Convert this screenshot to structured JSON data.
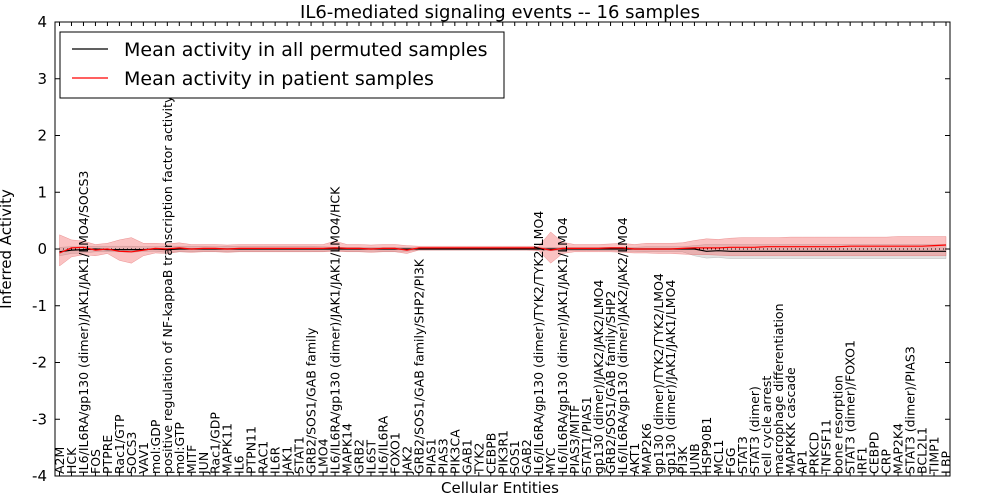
{
  "chart_data": {
    "type": "line",
    "title": "IL6-mediated signaling events -- 16 samples",
    "xlabel": "Cellular Entities",
    "ylabel": "Inferred Activity",
    "ylim": [
      -4,
      4
    ],
    "yticks": [
      -4,
      -3,
      -2,
      -1,
      0,
      1,
      2,
      3,
      4
    ],
    "grid": false,
    "legend_position": "top-left",
    "categories": [
      "A2M",
      "HCK",
      "IL6/IL6RA/gp130 (dimer)/JAK1/JAK1/LMO4/SOCS3",
      "FOS",
      "PTPRE",
      "Rac1/GTP",
      "SOCS3",
      "VAV1",
      "mol:GDP",
      "positive regulation of NF-kappaB transcription factor activity",
      "mol:GTP",
      "MITF",
      "JUN",
      "Rac1/GDP",
      "MAPK11",
      "IL6",
      "PTPN11",
      "RAC1",
      "IL6R",
      "JAK1",
      "STAT1",
      "GRB2/SOS1/GAB family",
      "LMO4",
      "IL6/IL6RA/gp130 (dimer)/JAK1/JAK1/LMO4/HCK",
      "MAPK14",
      "GRB2",
      "IL6ST",
      "IL6/IL6RA",
      "FOXO1",
      "JAK2",
      "GRB2/SOS1/GAB family/SHP2/PI3K",
      "PIAS1",
      "PIAS3",
      "PIK3CA",
      "GAB1",
      "TYK2",
      "CEBPB",
      "PIK3R1",
      "SOS1",
      "GAB2",
      "IL6/IL6RA/gp130 (dimer)/TYK2/TYK2/LMO4",
      "MYC",
      "IL6/IL6RA/gp130 (dimer)/JAK1/JAK1/LMO4",
      "PIAS3/MITF",
      "STAT1/PIAS1",
      "gp130 (dimer)/JAK2/JAK2/LMO4",
      "GRB2/SOS1/GAB family/SHP2",
      "IL6/IL6RA/gp130 (dimer)/JAK2/JAK2/LMO4",
      "AKT1",
      "MAP2K6",
      "gp130 (dimer)/TYK2/TYK2/LMO4",
      "gp130 (dimer)/JAK1/JAK1/LMO4",
      "PI3K",
      "JUNB",
      "HSP90B1",
      "MCL1",
      "FGG",
      "STAT3",
      "STAT3 (dimer)",
      "cell cycle arrest",
      "macrophage differentiation",
      "MAPKKK cascade",
      "AP1",
      "PRKCD",
      "TNFSF11",
      "bone resorption",
      "STAT3 (dimer)/FOXO1",
      "IRF1",
      "CEBPD",
      "CRP",
      "MAP2K4",
      "STAT3 (dimer)/PIAS3",
      "BCL2L1",
      "TIMP1",
      "LBP"
    ],
    "series": [
      {
        "name": "Mean activity in all permuted samples",
        "color": "#000000",
        "values": [
          -0.05,
          -0.02,
          -0.01,
          0,
          -0.01,
          -0.01,
          -0.01,
          -0.01,
          0,
          -0.01,
          0,
          0,
          0,
          0,
          0,
          0,
          0,
          0,
          0,
          0,
          0,
          0,
          0,
          0,
          0,
          0,
          0,
          0,
          0,
          0,
          0,
          0,
          0,
          0,
          0,
          0,
          0,
          0,
          0,
          0,
          0,
          0,
          0,
          0,
          0,
          0,
          0,
          0,
          0,
          0,
          0,
          0,
          0,
          0,
          -0.04,
          -0.03,
          -0.04,
          -0.04,
          -0.04,
          -0.04,
          -0.04,
          -0.04,
          -0.04,
          -0.04,
          -0.04,
          -0.04,
          -0.04,
          -0.04,
          -0.04,
          -0.04,
          -0.04,
          -0.04,
          -0.04,
          -0.04,
          -0.04
        ],
        "band_low": [
          -0.12,
          -0.08,
          -0.07,
          -0.05,
          -0.05,
          -0.05,
          -0.06,
          -0.04,
          -0.04,
          -0.06,
          -0.05,
          -0.05,
          -0.04,
          -0.04,
          -0.05,
          -0.05,
          -0.05,
          -0.05,
          -0.05,
          -0.05,
          -0.05,
          -0.05,
          -0.04,
          -0.03,
          -0.04,
          -0.04,
          -0.04,
          -0.04,
          -0.04,
          -0.04,
          -0.02,
          -0.02,
          -0.02,
          -0.02,
          -0.02,
          -0.02,
          -0.02,
          -0.02,
          -0.02,
          -0.02,
          -0.02,
          -0.03,
          -0.03,
          -0.03,
          -0.03,
          -0.03,
          -0.03,
          -0.04,
          -0.04,
          -0.05,
          -0.05,
          -0.05,
          -0.05,
          -0.12,
          -0.16,
          -0.15,
          -0.17,
          -0.17,
          -0.17,
          -0.17,
          -0.17,
          -0.17,
          -0.17,
          -0.17,
          -0.17,
          -0.17,
          -0.17,
          -0.17,
          -0.17,
          -0.17,
          -0.17,
          -0.17,
          -0.17,
          -0.17,
          -0.17
        ],
        "band_high": [
          0.03,
          0.04,
          0.05,
          0.05,
          0.05,
          0.05,
          0.05,
          0.04,
          0.04,
          0.05,
          0.05,
          0.05,
          0.05,
          0.04,
          0.05,
          0.05,
          0.05,
          0.05,
          0.05,
          0.05,
          0.05,
          0.05,
          0.04,
          0.03,
          0.03,
          0.03,
          0.03,
          0.03,
          0.03,
          0.03,
          0.02,
          0.02,
          0.02,
          0.02,
          0.02,
          0.02,
          0.02,
          0.02,
          0.02,
          0.02,
          0.02,
          0.03,
          0.03,
          0.03,
          0.03,
          0.03,
          0.03,
          0.03,
          0.03,
          0.04,
          0.04,
          0.04,
          0.04,
          0.06,
          0.08,
          0.08,
          0.08,
          0.08,
          0.08,
          0.08,
          0.08,
          0.08,
          0.08,
          0.08,
          0.08,
          0.08,
          0.08,
          0.08,
          0.08,
          0.08,
          0.08,
          0.08,
          0.08,
          0.08,
          0.08
        ]
      },
      {
        "name": "Mean activity in patient samples",
        "color": "#ff0000",
        "values": [
          -0.07,
          0.02,
          0.03,
          -0.02,
          0.0,
          -0.04,
          -0.05,
          -0.02,
          0.01,
          0.0,
          0.02,
          0.0,
          0.01,
          0.01,
          0.0,
          0.01,
          0.01,
          0.01,
          0.01,
          0.01,
          0.01,
          0.01,
          0.01,
          0.02,
          0.01,
          0.01,
          0.0,
          0.01,
          0.01,
          -0.02,
          0.02,
          0.02,
          0.02,
          0.02,
          0.02,
          0.02,
          0.02,
          0.02,
          0.02,
          0.02,
          0.02,
          -0.02,
          0.01,
          0.01,
          0.01,
          0.01,
          0.02,
          0.02,
          0.0,
          0.0,
          0.0,
          0.0,
          0.01,
          0.02,
          0.02,
          0.02,
          0.03,
          0.03,
          0.03,
          0.04,
          0.04,
          0.04,
          0.04,
          0.04,
          0.04,
          0.04,
          0.05,
          0.05,
          0.05,
          0.05,
          0.05,
          0.05,
          0.05,
          0.06,
          0.07
        ],
        "band_low": [
          -0.3,
          -0.14,
          -0.1,
          -0.12,
          -0.08,
          -0.2,
          -0.25,
          -0.12,
          -0.07,
          -0.08,
          -0.05,
          -0.06,
          -0.05,
          -0.05,
          -0.06,
          -0.05,
          -0.05,
          -0.05,
          -0.05,
          -0.05,
          -0.05,
          -0.05,
          -0.05,
          -0.04,
          -0.05,
          -0.05,
          -0.06,
          -0.05,
          -0.05,
          -0.08,
          -0.02,
          -0.02,
          -0.02,
          -0.02,
          -0.02,
          -0.02,
          -0.02,
          -0.02,
          -0.02,
          -0.02,
          -0.03,
          -0.25,
          -0.08,
          -0.05,
          -0.05,
          -0.05,
          -0.05,
          -0.06,
          -0.07,
          -0.07,
          -0.08,
          -0.08,
          -0.09,
          -0.1,
          -0.1,
          -0.11,
          -0.12,
          -0.12,
          -0.12,
          -0.12,
          -0.12,
          -0.12,
          -0.12,
          -0.12,
          -0.12,
          -0.12,
          -0.12,
          -0.12,
          -0.12,
          -0.12,
          -0.12,
          -0.12,
          -0.12,
          -0.12,
          -0.12
        ],
        "band_high": [
          0.25,
          0.16,
          0.14,
          0.08,
          0.1,
          0.16,
          0.2,
          0.1,
          0.1,
          0.09,
          0.11,
          0.08,
          0.08,
          0.08,
          0.07,
          0.08,
          0.08,
          0.08,
          0.08,
          0.08,
          0.08,
          0.08,
          0.08,
          0.14,
          0.08,
          0.08,
          0.07,
          0.08,
          0.08,
          0.06,
          0.05,
          0.05,
          0.05,
          0.05,
          0.05,
          0.05,
          0.05,
          0.05,
          0.05,
          0.05,
          0.05,
          0.3,
          0.12,
          0.08,
          0.08,
          0.08,
          0.09,
          0.1,
          0.08,
          0.1,
          0.1,
          0.1,
          0.11,
          0.15,
          0.18,
          0.17,
          0.19,
          0.2,
          0.2,
          0.2,
          0.2,
          0.21,
          0.21,
          0.21,
          0.21,
          0.21,
          0.21,
          0.21,
          0.21,
          0.21,
          0.22,
          0.22,
          0.22,
          0.22,
          0.22
        ]
      }
    ]
  }
}
